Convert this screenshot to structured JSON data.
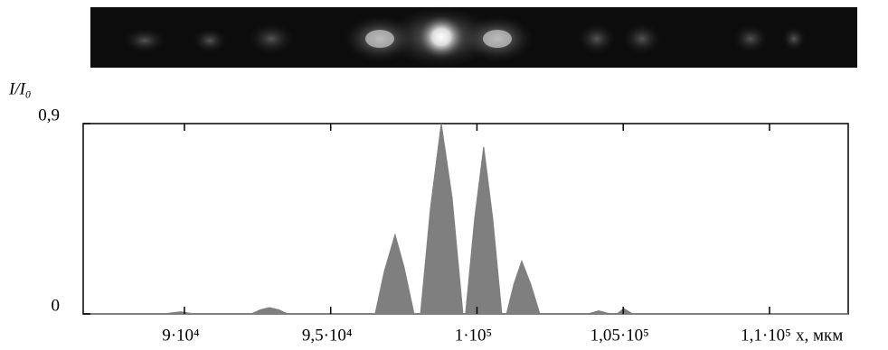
{
  "chart_data": {
    "type": "area",
    "y_label": "I/I₀",
    "x_label": "x, мкм",
    "x": [
      86540,
      89260,
      89880,
      90340,
      92290,
      92600,
      92910,
      93220,
      93530,
      96520,
      96830,
      97200,
      97510,
      97850,
      98070,
      98410,
      98780,
      99150,
      99520,
      99610,
      99920,
      100230,
      100540,
      100850,
      101010,
      101260,
      101530,
      101840,
      102150,
      103790,
      104160,
      104560,
      104780,
      105020,
      105330,
      112690
    ],
    "series": [
      {
        "color": "#7f7f7f",
        "values": [
          0,
          0,
          0.01,
          0,
          0,
          0.02,
          0.03,
          0.02,
          0,
          0,
          0.2,
          0.375,
          0.22,
          0,
          0,
          0.5,
          0.9,
          0.55,
          0,
          0,
          0.45,
          0.79,
          0.45,
          0,
          0,
          0.14,
          0.25,
          0.14,
          0,
          0,
          0.015,
          0,
          0,
          0.025,
          0,
          0
        ]
      }
    ],
    "xlim": [
      86540,
      112690
    ],
    "xticks": [
      {
        "value": 90000,
        "label": "9·10⁴"
      },
      {
        "value": 95000,
        "label": "9,5·10⁴"
      },
      {
        "value": 100000,
        "label": "1·10⁵"
      },
      {
        "value": 105000,
        "label": "1,05·10⁵"
      },
      {
        "value": 110000,
        "label": "1,1·10⁵"
      }
    ],
    "ylim": [
      0,
      0.9
    ],
    "yticks": [
      0,
      {
        "value": 0.9,
        "label": "0,9"
      }
    ]
  }
}
